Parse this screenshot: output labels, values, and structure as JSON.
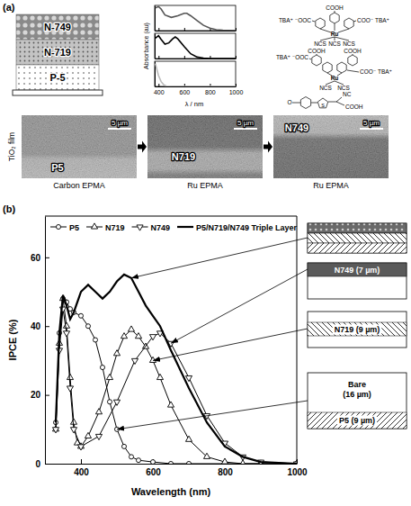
{
  "chart_data": [
    {
      "type": "line",
      "xlabel": "λ / nm",
      "ylabel": "Absorbance (au)",
      "xlim": [
        370,
        1000
      ],
      "xticks": [
        400,
        600,
        800,
        1000
      ],
      "ylim": [
        0,
        1.05
      ],
      "yticks": [],
      "tick_labels": "x",
      "grid": false,
      "series": [
        {
          "color": "#555555",
          "x": [
            375,
            400,
            420,
            450,
            500,
            550,
            600,
            620,
            650,
            700,
            750,
            800,
            850,
            900,
            1000
          ],
          "values": [
            0.95,
            1.0,
            0.9,
            0.65,
            0.55,
            0.62,
            0.72,
            0.72,
            0.62,
            0.42,
            0.22,
            0.1,
            0.04,
            0.02,
            0
          ]
        },
        {
          "color": "#000000",
          "x": [
            375,
            400,
            420,
            450,
            480,
            510,
            530,
            550,
            600,
            650,
            700,
            750,
            800,
            1000
          ],
          "values": [
            0.85,
            0.95,
            0.8,
            0.6,
            0.65,
            0.82,
            0.9,
            0.82,
            0.5,
            0.2,
            0.06,
            0.02,
            0,
            0
          ]
        },
        {
          "color": "#bbbbbb",
          "x": [
            375,
            385,
            400,
            420,
            440,
            460,
            500,
            1000
          ],
          "values": [
            0.95,
            0.75,
            0.45,
            0.2,
            0.07,
            0.02,
            0,
            0
          ]
        }
      ]
    },
    {
      "type": "line",
      "xlabel": "Wavelength (nm)",
      "ylabel": "IPCE (%)",
      "xlim": [
        300,
        1000
      ],
      "xticks": [
        400,
        600,
        800,
        1000
      ],
      "ylim": [
        0,
        72
      ],
      "yticks": [
        0,
        20,
        40,
        60
      ],
      "grid": false,
      "legend": "top",
      "series": [
        {
          "name": "P5",
          "color": "#000000",
          "marker": "circle",
          "line_style": "solid",
          "x": [
            330,
            340,
            350,
            360,
            370,
            380,
            400,
            420,
            440,
            460,
            480,
            500,
            520,
            540,
            560,
            600,
            650,
            700,
            800,
            900,
            1000
          ],
          "values": [
            12,
            38,
            48,
            47,
            45,
            44,
            43,
            40,
            36,
            28,
            18,
            10,
            5,
            2,
            1,
            0.5,
            0,
            0,
            0,
            0,
            0
          ]
        },
        {
          "name": "N719",
          "color": "#000000",
          "marker": "triangle-up",
          "line_style": "solid",
          "x": [
            330,
            340,
            350,
            360,
            370,
            380,
            390,
            400,
            420,
            450,
            480,
            500,
            520,
            540,
            560,
            580,
            600,
            620,
            650,
            700,
            750,
            800,
            850,
            900,
            1000
          ],
          "values": [
            10,
            35,
            48,
            40,
            25,
            12,
            6,
            5,
            8,
            15,
            25,
            32,
            37,
            39,
            37,
            34,
            30,
            25,
            17,
            7,
            2,
            0.5,
            0,
            0,
            0
          ]
        },
        {
          "name": "N749",
          "color": "#000000",
          "marker": "triangle-down",
          "line_style": "solid",
          "x": [
            330,
            340,
            350,
            360,
            370,
            380,
            400,
            450,
            500,
            550,
            600,
            620,
            650,
            700,
            750,
            800,
            850,
            900,
            1000
          ],
          "values": [
            10,
            33,
            45,
            38,
            22,
            10,
            5,
            8,
            18,
            30,
            37,
            38,
            35,
            25,
            14,
            6,
            2,
            0.5,
            0
          ]
        },
        {
          "name": "P5/N719/N749 Triple Layer",
          "color": "#000000",
          "marker": "none",
          "line_style": "solid",
          "x": [
            330,
            340,
            350,
            360,
            370,
            380,
            400,
            420,
            440,
            460,
            480,
            500,
            520,
            540,
            560,
            580,
            600,
            620,
            650,
            700,
            750,
            800,
            850,
            900,
            1000
          ],
          "values": [
            12,
            38,
            49,
            46,
            42,
            44,
            50,
            52,
            50,
            48,
            50,
            53,
            55,
            54,
            50,
            46,
            43,
            40,
            33,
            22,
            12,
            5,
            2,
            0.5,
            0
          ]
        }
      ]
    }
  ],
  "panel_a": {
    "label": "(a)",
    "layers": [
      "N-749",
      "N-719",
      "P-5"
    ],
    "structures": [
      {
        "left": "TBA⁺ ⁻OOC",
        "top": "COOH",
        "right": "COO⁻ TBA⁺",
        "metal": "Ru",
        "ligands": [
          "NCS",
          "NCS",
          "NCS"
        ]
      },
      {
        "left": "TBA⁺ ⁻OOC",
        "top": "COOH",
        "right": "COOH",
        "bottom_right": "COO⁻ TBA⁺",
        "metal": "Ru",
        "ligands": [
          "NCS",
          "NCS"
        ]
      },
      {
        "left": "O",
        "ring": "S",
        "cyano": "NC",
        "acid": "COOH"
      }
    ],
    "epma": {
      "axis_label": "TiO₂ film",
      "images": [
        {
          "caption": "Carbon EPMA",
          "label": "P5",
          "scale": "5 µm"
        },
        {
          "caption": "Ru EPMA",
          "label": "N719",
          "scale": "5 µm"
        },
        {
          "caption": "Ru EPMA",
          "label": "N749",
          "scale": "5 µm"
        }
      ]
    }
  },
  "panel_b": {
    "label": "(b)",
    "boxes": [
      {
        "label": "N749 (7 µm)"
      },
      {
        "label": "N719 (9 µm)"
      },
      {
        "label": "Bare (16 µm)",
        "layer_label": "P5 (9 µm)"
      }
    ]
  }
}
